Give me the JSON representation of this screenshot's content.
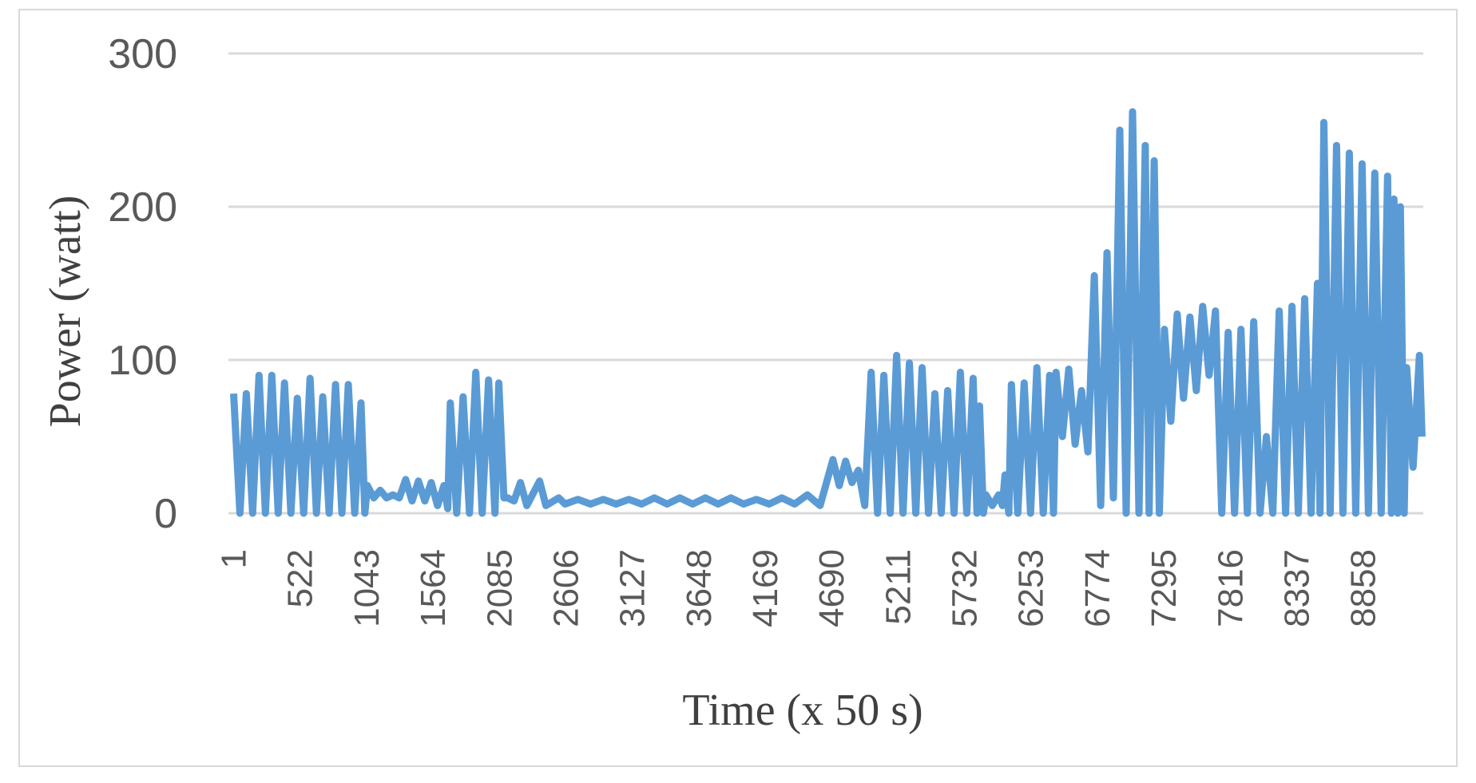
{
  "chart_data": {
    "type": "line",
    "xlabel": "Time (x 50 s)",
    "ylabel": "Power (watt)",
    "xlim": [
      -40,
      9330
    ],
    "ylim": [
      0,
      300
    ],
    "xticks": [
      1,
      522,
      1043,
      1564,
      2085,
      2606,
      3127,
      3648,
      4169,
      4690,
      5211,
      5732,
      6253,
      6774,
      7295,
      7816,
      8337,
      8858
    ],
    "yticks": [
      0,
      100,
      200,
      300
    ],
    "grid": true,
    "x": [
      1,
      50,
      100,
      150,
      200,
      250,
      300,
      350,
      400,
      450,
      500,
      550,
      600,
      650,
      700,
      750,
      800,
      850,
      900,
      950,
      1000,
      1030,
      1050,
      1100,
      1150,
      1200,
      1250,
      1300,
      1350,
      1400,
      1450,
      1500,
      1550,
      1600,
      1650,
      1680,
      1700,
      1750,
      1800,
      1850,
      1900,
      1950,
      2000,
      2050,
      2080,
      2120,
      2150,
      2200,
      2250,
      2300,
      2400,
      2450,
      2550,
      2600,
      2700,
      2800,
      2900,
      3000,
      3100,
      3200,
      3300,
      3400,
      3500,
      3600,
      3700,
      3800,
      3900,
      4000,
      4100,
      4200,
      4300,
      4400,
      4500,
      4600,
      4700,
      4750,
      4800,
      4850,
      4900,
      4950,
      5000,
      5050,
      5100,
      5150,
      5200,
      5250,
      5300,
      5350,
      5400,
      5450,
      5500,
      5550,
      5600,
      5650,
      5700,
      5750,
      5800,
      5830,
      5850,
      5880,
      5900,
      5950,
      6000,
      6030,
      6050,
      6080,
      6100,
      6150,
      6200,
      6250,
      6300,
      6350,
      6400,
      6430,
      6450,
      6500,
      6550,
      6600,
      6650,
      6700,
      6750,
      6800,
      6850,
      6900,
      6950,
      7000,
      7050,
      7100,
      7150,
      7180,
      7220,
      7260,
      7300,
      7350,
      7400,
      7450,
      7500,
      7550,
      7600,
      7650,
      7700,
      7750,
      7800,
      7850,
      7900,
      7950,
      8000,
      8050,
      8100,
      8150,
      8200,
      8250,
      8300,
      8350,
      8400,
      8450,
      8500,
      8520,
      8550,
      8600,
      8650,
      8700,
      8750,
      8800,
      8850,
      8900,
      8950,
      9000,
      9050,
      9080,
      9100,
      9130,
      9150,
      9180,
      9200,
      9250,
      9300,
      9320
    ],
    "series": [
      {
        "color": "#5b9bd5",
        "values": [
          78,
          0,
          78,
          0,
          90,
          0,
          90,
          0,
          85,
          0,
          75,
          0,
          88,
          0,
          76,
          0,
          84,
          0,
          84,
          0,
          72,
          0,
          18,
          10,
          15,
          10,
          12,
          10,
          22,
          8,
          21,
          8,
          20,
          5,
          18,
          3,
          72,
          0,
          76,
          0,
          92,
          0,
          87,
          0,
          85,
          10,
          10,
          8,
          20,
          5,
          21,
          5,
          10,
          6,
          9,
          6,
          9,
          6,
          9,
          6,
          10,
          6,
          10,
          6,
          10,
          6,
          10,
          6,
          9,
          6,
          10,
          6,
          12,
          5,
          35,
          18,
          34,
          20,
          28,
          5,
          92,
          0,
          90,
          0,
          103,
          0,
          98,
          0,
          95,
          0,
          78,
          0,
          80,
          0,
          92,
          0,
          88,
          0,
          70,
          0,
          12,
          5,
          12,
          5,
          25,
          0,
          84,
          0,
          85,
          0,
          95,
          0,
          90,
          0,
          92,
          50,
          94,
          45,
          80,
          40,
          155,
          5,
          170,
          10,
          250,
          0,
          262,
          0,
          240,
          0,
          230,
          0,
          120,
          60,
          130,
          75,
          128,
          80,
          135,
          90,
          132,
          0,
          118,
          0,
          120,
          0,
          125,
          0,
          50,
          0,
          132,
          0,
          135,
          0,
          140,
          0,
          150,
          0,
          255,
          0,
          240,
          0,
          235,
          0,
          228,
          0,
          222,
          0,
          220,
          0,
          205,
          0,
          200,
          0,
          95,
          30,
          103,
          50
        ]
      }
    ]
  }
}
